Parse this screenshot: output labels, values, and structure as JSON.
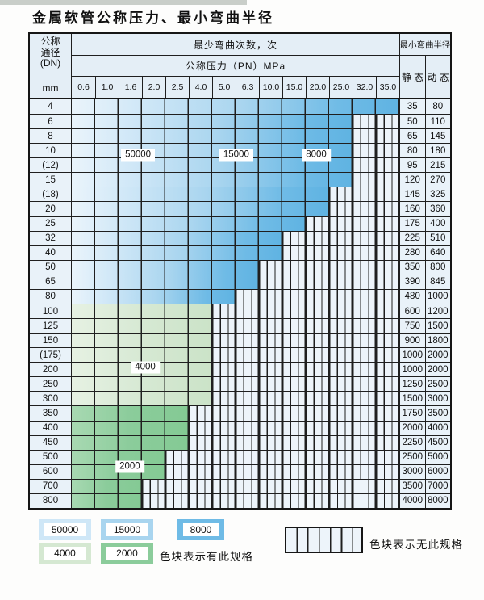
{
  "title": "金属软管公称压力、最小弯曲半径",
  "table": {
    "dn_header_lines": [
      "公称",
      "通径",
      "(DN)"
    ],
    "dn_header_unit": "mm",
    "bend_header": "最少弯曲次数，次",
    "pn_header": "公称压力（PN）MPa",
    "radius_header": "最小弯曲半径",
    "static_label": "静 态",
    "dynamic_label": "动 态",
    "pressures": [
      "0.6",
      "1.0",
      "1.6",
      "2.0",
      "2.5",
      "4.0",
      "5.0",
      "6.3",
      "10.0",
      "15.0",
      "20.0",
      "25.0",
      "32.0",
      "35.0"
    ],
    "rows": [
      {
        "dn": "4",
        "colored": 14,
        "band": "blue",
        "static": "35",
        "dynamic": "80"
      },
      {
        "dn": "6",
        "colored": 12,
        "band": "blue",
        "static": "50",
        "dynamic": "110"
      },
      {
        "dn": "8",
        "colored": 12,
        "band": "blue",
        "static": "65",
        "dynamic": "145"
      },
      {
        "dn": "10",
        "colored": 12,
        "band": "blue",
        "static": "80",
        "dynamic": "180"
      },
      {
        "dn": "(12)",
        "colored": 12,
        "band": "blue",
        "static": "95",
        "dynamic": "215"
      },
      {
        "dn": "15",
        "colored": 12,
        "band": "blue",
        "static": "120",
        "dynamic": "270"
      },
      {
        "dn": "(18)",
        "colored": 11,
        "band": "blue",
        "static": "145",
        "dynamic": "325"
      },
      {
        "dn": "20",
        "colored": 11,
        "band": "blue",
        "static": "160",
        "dynamic": "360"
      },
      {
        "dn": "25",
        "colored": 10,
        "band": "blue",
        "static": "175",
        "dynamic": "400"
      },
      {
        "dn": "32",
        "colored": 9,
        "band": "blue",
        "static": "225",
        "dynamic": "510"
      },
      {
        "dn": "40",
        "colored": 9,
        "band": "blue",
        "static": "280",
        "dynamic": "640"
      },
      {
        "dn": "50",
        "colored": 8,
        "band": "blue",
        "static": "350",
        "dynamic": "800"
      },
      {
        "dn": "65",
        "colored": 8,
        "band": "blue",
        "static": "390",
        "dynamic": "845"
      },
      {
        "dn": "80",
        "colored": 7,
        "band": "blue",
        "static": "480",
        "dynamic": "1000"
      },
      {
        "dn": "100",
        "colored": 6,
        "band": "green-light",
        "static": "600",
        "dynamic": "1200"
      },
      {
        "dn": "125",
        "colored": 6,
        "band": "green-light",
        "static": "750",
        "dynamic": "1500"
      },
      {
        "dn": "150",
        "colored": 6,
        "band": "green-light",
        "static": "900",
        "dynamic": "1800"
      },
      {
        "dn": "(175)",
        "colored": 6,
        "band": "green-light",
        "static": "1000",
        "dynamic": "2000"
      },
      {
        "dn": "200",
        "colored": 6,
        "band": "green-light",
        "static": "1000",
        "dynamic": "2000"
      },
      {
        "dn": "250",
        "colored": 6,
        "band": "green-light",
        "static": "1250",
        "dynamic": "2500"
      },
      {
        "dn": "300",
        "colored": 6,
        "band": "green-light",
        "static": "1500",
        "dynamic": "3000"
      },
      {
        "dn": "350",
        "colored": 5,
        "band": "green-dark",
        "static": "1750",
        "dynamic": "3500"
      },
      {
        "dn": "400",
        "colored": 5,
        "band": "green-dark",
        "static": "2000",
        "dynamic": "4000"
      },
      {
        "dn": "450",
        "colored": 5,
        "band": "green-dark",
        "static": "2250",
        "dynamic": "4500"
      },
      {
        "dn": "500",
        "colored": 4,
        "band": "green-dark",
        "static": "2500",
        "dynamic": "5000"
      },
      {
        "dn": "600",
        "colored": 4,
        "band": "green-dark",
        "static": "3000",
        "dynamic": "6000"
      },
      {
        "dn": "700",
        "colored": 3,
        "band": "green-dark",
        "static": "3500",
        "dynamic": "7000"
      },
      {
        "dn": "800",
        "colored": 3,
        "band": "green-dark",
        "static": "4000",
        "dynamic": "8000"
      }
    ],
    "overlay_labels": [
      {
        "text": "50000",
        "col": 2.83,
        "row": 3.82
      },
      {
        "text": "15000",
        "col": 7.03,
        "row": 3.82
      },
      {
        "text": "8000",
        "col": 10.45,
        "row": 3.82
      },
      {
        "text": "4000",
        "col": 3.14,
        "row": 18.37
      },
      {
        "text": "2000",
        "col": 2.48,
        "row": 25.2
      }
    ]
  },
  "legend": {
    "items": [
      {
        "label": "50000",
        "color": "#cfe7f7"
      },
      {
        "label": "15000",
        "color": "#a9d5ef"
      },
      {
        "label": "8000",
        "color": "#6fbbe6"
      },
      {
        "label": "4000",
        "color": "#d5e8d2"
      },
      {
        "label": "2000",
        "color": "#8bcc9b"
      }
    ],
    "has_spec_note": "色块表示有此规格",
    "no_spec_note": "色块表示无此规格"
  },
  "colors": {
    "blue_50000": "#cfe7f7",
    "blue_15000": "#a9d5ef",
    "blue_8000": "#6fbbe6",
    "green_4000": "#d5e8d2",
    "green_2000": "#8bcc9b",
    "hatch_bg": "#edf4fa",
    "header_bg": "#e4eef6",
    "label_col_bg": "#e9f2f9",
    "grid_line": "#1f1f1f"
  }
}
